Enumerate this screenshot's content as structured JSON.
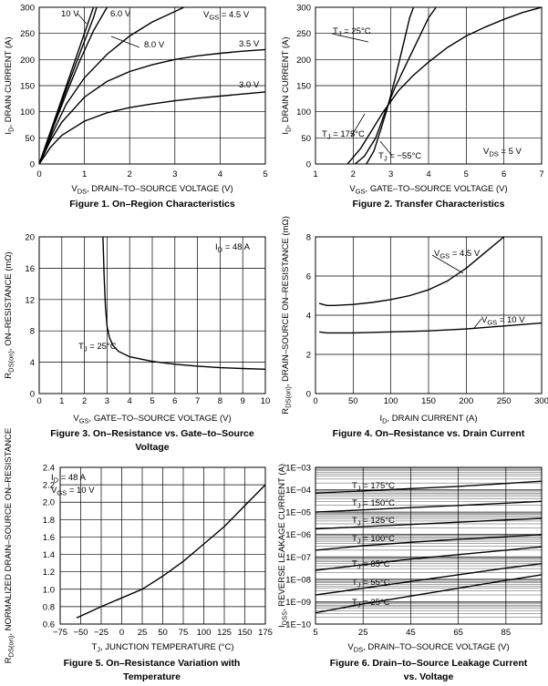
{
  "charts": [
    {
      "id": "fig1",
      "type": "line",
      "caption": "Figure 1. On–Region Characteristics",
      "xlabel": "V₂DS₂, DRAIN–TO–SOURCE VOLTAGE (V)",
      "ylabel": "I₂D₂, DRAIN CURRENT (A)",
      "xlim": [
        0,
        5
      ],
      "ylim": [
        0,
        300
      ],
      "xticks": [
        "0",
        "1",
        "2",
        "3",
        "4",
        "5"
      ],
      "yticks": [
        "0",
        "50",
        "100",
        "150",
        "200",
        "250",
        "300"
      ],
      "annotations": [
        "10 V",
        "6.0 V",
        "V₂GS₂ = 4.5 V",
        "8.0 V",
        "3.5 V",
        "3.0 V"
      ],
      "series": [
        {
          "name": "10 V",
          "x": [
            0,
            0.3,
            0.6,
            0.9,
            1.2
          ],
          "y": [
            0,
            75,
            150,
            225,
            300
          ]
        },
        {
          "name": "8.0 V",
          "x": [
            0,
            0.3,
            0.6,
            0.9,
            1.2,
            1.27
          ],
          "y": [
            0,
            72,
            143,
            212,
            280,
            300
          ]
        },
        {
          "name": "6.0 V",
          "x": [
            0,
            0.3,
            0.6,
            0.9,
            1.2,
            1.5
          ],
          "y": [
            0,
            68,
            135,
            198,
            255,
            300
          ]
        },
        {
          "name": "4.5 V",
          "x": [
            0,
            0.3,
            0.6,
            1.0,
            1.5,
            2.0,
            2.5,
            3.0,
            3.2
          ],
          "y": [
            0,
            60,
            115,
            165,
            210,
            245,
            272,
            292,
            300
          ]
        },
        {
          "name": "3.5 V",
          "x": [
            0,
            0.25,
            0.5,
            1.0,
            1.5,
            2.0,
            2.5,
            3.0,
            3.5,
            4.0,
            4.5,
            5.0
          ],
          "y": [
            0,
            45,
            80,
            128,
            158,
            177,
            190,
            200,
            207,
            212,
            216,
            219
          ]
        },
        {
          "name": "3.0 V",
          "x": [
            0,
            0.25,
            0.5,
            1.0,
            1.5,
            2.0,
            2.5,
            3.0,
            3.5,
            4.0,
            4.5,
            5.0
          ],
          "y": [
            0,
            32,
            55,
            82,
            98,
            108,
            115,
            121,
            126,
            130,
            134,
            138
          ]
        }
      ]
    },
    {
      "id": "fig2",
      "type": "line",
      "caption": "Figure 2. Transfer Characteristics",
      "xlabel": "V₂GS₂, GATE–TO–SOURCE VOLTAGE (V)",
      "ylabel": "I₂D₂, DRAIN CURRENT (A)",
      "xlim": [
        1,
        7
      ],
      "ylim": [
        0,
        300
      ],
      "xticks": [
        "1",
        "2",
        "3",
        "4",
        "5",
        "6",
        "7"
      ],
      "yticks": [
        "0",
        "50",
        "100",
        "150",
        "200",
        "250",
        "300"
      ],
      "annotations": [
        "T₂J₂ = 25°C",
        "T₂J₂ = 175°C",
        "T₂J₂ = −55°C",
        "V₂DS₂ = 5 V"
      ],
      "series": [
        {
          "name": "T_J = 25°C",
          "x": [
            2.05,
            2.3,
            2.6,
            2.85,
            3.1,
            3.4,
            3.7,
            4.0,
            4.2
          ],
          "y": [
            0,
            15,
            50,
            100,
            145,
            190,
            235,
            280,
            300
          ]
        },
        {
          "name": "T_J = 175°C",
          "x": [
            1.85,
            2.2,
            2.5,
            2.8,
            3.2,
            3.6,
            4.0,
            4.5,
            5.0,
            5.5,
            6.0,
            6.5,
            7.0
          ],
          "y": [
            0,
            30,
            65,
            100,
            140,
            170,
            195,
            223,
            245,
            262,
            277,
            290,
            300
          ]
        },
        {
          "name": "T_J = −55°C",
          "x": [
            2.35,
            2.55,
            2.75,
            2.9,
            3.1,
            3.3,
            3.5,
            3.6
          ],
          "y": [
            0,
            25,
            70,
            105,
            160,
            220,
            280,
            300
          ]
        }
      ]
    },
    {
      "id": "fig3",
      "type": "line",
      "caption": "Figure 3. On–Resistance vs. Gate–to–Source",
      "caption2": "Voltage",
      "xlabel": "V₂GS₂, GATE–TO–SOURCE VOLTAGE (V)",
      "ylabel": "R₂DS(on)₂, ON–RESISTANCE (mΩ)",
      "xlim": [
        0,
        10
      ],
      "ylim": [
        0,
        20
      ],
      "xticks": [
        "0",
        "1",
        "2",
        "3",
        "4",
        "5",
        "6",
        "7",
        "8",
        "9",
        "10"
      ],
      "yticks": [
        "0",
        "4",
        "8",
        "12",
        "16",
        "20"
      ],
      "annotations": [
        "I₂D₂ = 48 A",
        "T₂J₂ = 25°C"
      ],
      "series": [
        {
          "name": "T_J = 25°C",
          "x": [
            2.82,
            2.87,
            2.93,
            3.0,
            3.1,
            3.25,
            3.5,
            4.0,
            5.0,
            6.0,
            7.0,
            8.0,
            9.0,
            10.0
          ],
          "y": [
            20,
            15,
            11,
            8.6,
            7.2,
            6.2,
            5.4,
            4.7,
            4.1,
            3.75,
            3.5,
            3.3,
            3.2,
            3.1
          ]
        }
      ]
    },
    {
      "id": "fig4",
      "type": "line",
      "caption": "Figure 4. On–Resistance vs. Drain Current",
      "xlabel": "I₂D₂, DRAIN CURRENT (A)",
      "ylabel": "R₂DS(on)₂, DRAIN–SOURCE ON–RESISTANCE (mΩ)",
      "xlim": [
        0,
        300
      ],
      "ylim": [
        0,
        8
      ],
      "xticks": [
        "0",
        "50",
        "100",
        "150",
        "200",
        "250",
        "300"
      ],
      "yticks": [
        "0",
        "2",
        "4",
        "6",
        "8"
      ],
      "annotations": [
        "V₂GS₂ = 4.5 V",
        "V₂GS₂ = 10 V"
      ],
      "series": [
        {
          "name": "VGS = 4.5 V",
          "x": [
            5,
            15,
            25,
            50,
            75,
            100,
            125,
            150,
            175,
            200,
            225,
            250
          ],
          "y": [
            4.6,
            4.5,
            4.5,
            4.55,
            4.65,
            4.8,
            5.0,
            5.3,
            5.75,
            6.4,
            7.2,
            8.0
          ]
        },
        {
          "name": "VGS = 10 V",
          "x": [
            5,
            15,
            25,
            50,
            100,
            150,
            200,
            250,
            300
          ],
          "y": [
            3.15,
            3.1,
            3.1,
            3.1,
            3.15,
            3.2,
            3.3,
            3.45,
            3.6
          ]
        }
      ]
    },
    {
      "id": "fig5",
      "type": "line",
      "caption": "Figure 5. On–Resistance Variation with",
      "caption2": "Temperature",
      "xlabel": "T₂J₂, JUNCTION TEMPERATURE (°C)",
      "ylabel": "R₂DS(on)₂, NORMALIZED DRAIN–SOURCE ON–RESISTANCE",
      "xlim": [
        -75,
        175
      ],
      "ylim": [
        0.6,
        2.4
      ],
      "xticks": [
        "−75",
        "−50",
        "−25",
        "0",
        "25",
        "50",
        "75",
        "100",
        "125",
        "150",
        "175"
      ],
      "yticks": [
        "0.6",
        "0.8",
        "1.0",
        "1.2",
        "1.4",
        "1.6",
        "1.8",
        "2.0",
        "2.2",
        "2.4"
      ],
      "annotations": [
        "I₂D₂ = 48 A",
        "V₂GS₂ = 10 V"
      ],
      "series": [
        {
          "name": "normalized",
          "x": [
            -55,
            -25,
            0,
            25,
            50,
            75,
            100,
            125,
            150,
            175
          ],
          "y": [
            0.67,
            0.8,
            0.9,
            1.0,
            1.15,
            1.32,
            1.52,
            1.72,
            1.96,
            2.2
          ]
        }
      ]
    },
    {
      "id": "fig6",
      "type": "line",
      "scale": "log",
      "caption": "Figure 6. Drain–to–Source Leakage Current",
      "caption2": "vs. Voltage",
      "xlabel": "V₂DS₂, DRAIN–TO–SOURCE VOLTAGE (V)",
      "ylabel": "I₂DSS₂, REVERSE LEAKAGE CURRENT (A)",
      "xlim": [
        5,
        100
      ],
      "ylim_exp": [
        -10,
        -3
      ],
      "xticks": [
        "5",
        "25",
        "45",
        "65",
        "85"
      ],
      "xtick_values": [
        5,
        25,
        45,
        65,
        85
      ],
      "yticks": [
        "1E−10",
        "1E−09",
        "1E−08",
        "1E−07",
        "1E−06",
        "1E−05",
        "1E−04",
        "1E−03"
      ],
      "annotations": [
        "T₂J₂ = 175°C",
        "T₂J₂ = 150°C",
        "T₂J₂ = 125°C",
        "T₂J₂ = 100°C",
        "T₂J₂ = 85°C",
        "T₂J₂ = 55°C",
        "T₂J₂ = 25°C"
      ],
      "series": [
        {
          "name": "175°C",
          "x": [
            5,
            25,
            45,
            65,
            85,
            100
          ],
          "y_exp": [
            -4.15,
            -4.05,
            -3.95,
            -3.85,
            -3.72,
            -3.62
          ]
        },
        {
          "name": "150°C",
          "x": [
            5,
            25,
            45,
            65,
            85,
            100
          ],
          "y_exp": [
            -5.0,
            -4.9,
            -4.8,
            -4.7,
            -4.6,
            -4.52
          ]
        },
        {
          "name": "125°C",
          "x": [
            5,
            25,
            45,
            65,
            85,
            100
          ],
          "y_exp": [
            -5.75,
            -5.65,
            -5.55,
            -5.45,
            -5.35,
            -5.28
          ]
        },
        {
          "name": "100°C",
          "x": [
            5,
            25,
            45,
            65,
            85,
            100
          ],
          "y_exp": [
            -6.7,
            -6.5,
            -6.35,
            -6.22,
            -6.1,
            -6.0
          ]
        },
        {
          "name": "85°C",
          "x": [
            5,
            25,
            45,
            65,
            85,
            100
          ],
          "y_exp": [
            -7.6,
            -7.35,
            -7.1,
            -6.9,
            -6.7,
            -6.55
          ]
        },
        {
          "name": "55°C",
          "x": [
            5,
            25,
            45,
            65,
            85,
            100
          ],
          "y_exp": [
            -8.7,
            -8.4,
            -8.1,
            -7.8,
            -7.5,
            -7.3
          ]
        },
        {
          "name": "25°C",
          "x": [
            5,
            25,
            45,
            65,
            85,
            100
          ],
          "y_exp": [
            -9.5,
            -9.1,
            -8.75,
            -8.4,
            -8.05,
            -7.8
          ]
        }
      ]
    }
  ]
}
